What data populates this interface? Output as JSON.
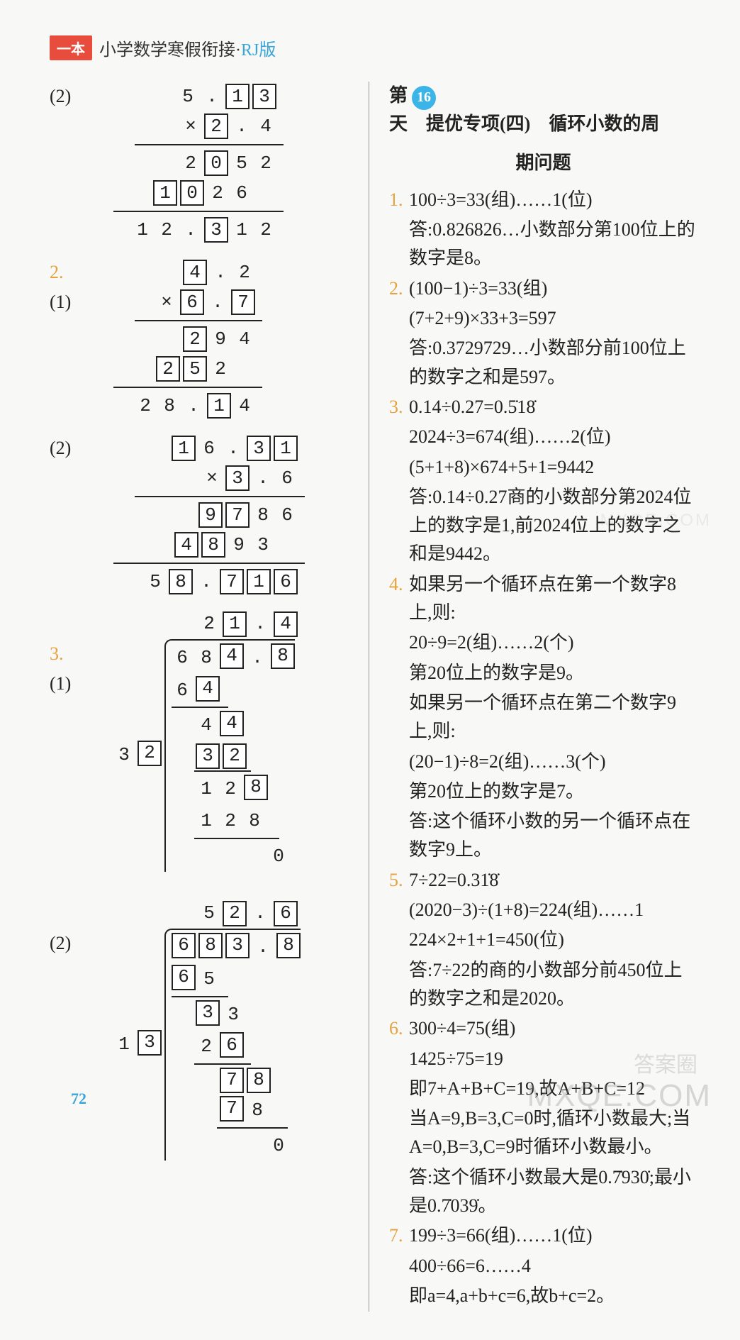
{
  "header": {
    "badge": "一本",
    "title_main": "小学数学寒假衔接·",
    "title_rj": "RJ版"
  },
  "page_number": "72",
  "watermarks": {
    "w1": "MXQE.COM",
    "w2": "答案圈",
    "w3": "MXQE.COM"
  },
  "left": {
    "p1_2": {
      "label": "(2)",
      "r1": [
        "5",
        ".",
        "1",
        "3"
      ],
      "r1_boxed": [
        false,
        false,
        true,
        true
      ],
      "r2": [
        "×",
        "2",
        ".",
        "4"
      ],
      "r2_boxed": [
        false,
        true,
        false,
        false
      ],
      "hr1_w": 210,
      "r3": [
        "2",
        "0",
        "5",
        "2"
      ],
      "r3_boxed": [
        false,
        true,
        false,
        false
      ],
      "r4": [
        "1",
        "0",
        "2",
        "6",
        " "
      ],
      "r4_boxed": [
        true,
        true,
        false,
        false,
        false
      ],
      "hr2_w": 240,
      "r5": [
        "1",
        "2",
        ".",
        "3",
        "1",
        "2"
      ],
      "r5_boxed": [
        false,
        false,
        false,
        true,
        false,
        false
      ]
    },
    "p2_1": {
      "num": "2.",
      "label": "(1)",
      "r1": [
        "4",
        ".",
        "2"
      ],
      "r1_boxed": [
        true,
        false,
        false
      ],
      "r2": [
        "×",
        "6",
        ".",
        "7"
      ],
      "r2_boxed": [
        false,
        true,
        false,
        true
      ],
      "hr1_w": 180,
      "r3": [
        "2",
        "9",
        "4"
      ],
      "r3_boxed": [
        true,
        false,
        false
      ],
      "r4": [
        "2",
        "5",
        "2",
        " "
      ],
      "r4_boxed": [
        true,
        true,
        false,
        false
      ],
      "hr2_w": 210,
      "r5": [
        "2",
        "8",
        ".",
        "1",
        "4"
      ],
      "r5_boxed": [
        false,
        false,
        false,
        true,
        false
      ]
    },
    "p2_2": {
      "label": "(2)",
      "r1": [
        "1",
        "6",
        ".",
        "3",
        "1"
      ],
      "r1_boxed": [
        true,
        false,
        false,
        true,
        true
      ],
      "r2": [
        "×",
        "3",
        ".",
        "6"
      ],
      "r2_boxed": [
        false,
        true,
        false,
        false
      ],
      "hr1_w": 240,
      "r3": [
        "9",
        "7",
        "8",
        "6"
      ],
      "r3_boxed": [
        true,
        true,
        false,
        false
      ],
      "r4": [
        "4",
        "8",
        "9",
        "3",
        " "
      ],
      "r4_boxed": [
        true,
        true,
        false,
        false,
        false
      ],
      "hr2_w": 270,
      "r5": [
        "5",
        "8",
        ".",
        "7",
        "1",
        "6"
      ],
      "r5_boxed": [
        false,
        true,
        false,
        true,
        true,
        true
      ]
    },
    "p3_1": {
      "num": "3.",
      "label": "(1)",
      "quotient": [
        "2",
        "1",
        ".",
        "4"
      ],
      "quotient_boxed": [
        false,
        true,
        false,
        true
      ],
      "divisor": [
        "3",
        "2"
      ],
      "divisor_boxed": [
        false,
        true
      ],
      "dividend": [
        "6",
        "8",
        "4",
        ".",
        "8"
      ],
      "dividend_boxed": [
        false,
        false,
        true,
        false,
        true
      ],
      "steps": [
        {
          "cells": [
            "6",
            "4",
            " ",
            " ",
            " "
          ],
          "boxed": [
            false,
            true,
            false,
            false,
            false
          ],
          "underline_w": 80,
          "underline_off": 0
        },
        {
          "cells": [
            " ",
            "4",
            "4",
            " ",
            " "
          ],
          "boxed": [
            false,
            false,
            true,
            false,
            false
          ]
        },
        {
          "cells": [
            " ",
            "3",
            "2",
            " ",
            " "
          ],
          "boxed": [
            false,
            true,
            true,
            false,
            false
          ],
          "underline_w": 80,
          "underline_off": 32
        },
        {
          "cells": [
            " ",
            "1",
            "2",
            "8",
            " "
          ],
          "boxed": [
            false,
            false,
            false,
            true,
            false
          ]
        },
        {
          "cells": [
            " ",
            "1",
            "2",
            "8",
            " "
          ],
          "boxed": [
            false,
            false,
            false,
            false,
            false
          ],
          "underline_w": 120,
          "underline_off": 32
        },
        {
          "cells": [
            " ",
            " ",
            " ",
            " ",
            "0"
          ],
          "boxed": [
            false,
            false,
            false,
            false,
            false
          ]
        }
      ]
    },
    "p3_2": {
      "label": "(2)",
      "quotient": [
        "5",
        "2",
        ".",
        "6"
      ],
      "quotient_boxed": [
        false,
        true,
        false,
        true
      ],
      "divisor": [
        "1",
        "3"
      ],
      "divisor_boxed": [
        false,
        true
      ],
      "dividend": [
        "6",
        "8",
        "3",
        ".",
        "8"
      ],
      "dividend_boxed": [
        true,
        true,
        true,
        false,
        true
      ],
      "steps": [
        {
          "cells": [
            "6",
            "5",
            " ",
            " ",
            " "
          ],
          "boxed": [
            true,
            false,
            false,
            false,
            false
          ],
          "underline_w": 80,
          "underline_off": 0
        },
        {
          "cells": [
            " ",
            "3",
            "3",
            " ",
            " "
          ],
          "boxed": [
            false,
            true,
            false,
            false,
            false
          ]
        },
        {
          "cells": [
            " ",
            "2",
            "6",
            " ",
            " "
          ],
          "boxed": [
            false,
            false,
            true,
            false,
            false
          ],
          "underline_w": 80,
          "underline_off": 32
        },
        {
          "cells": [
            " ",
            " ",
            "7",
            "8",
            " "
          ],
          "boxed": [
            false,
            false,
            true,
            true,
            false
          ]
        },
        {
          "cells": [
            " ",
            " ",
            "7",
            "8",
            " "
          ],
          "boxed": [
            false,
            false,
            true,
            false,
            false
          ],
          "underline_w": 100,
          "underline_off": 64
        },
        {
          "cells": [
            " ",
            " ",
            " ",
            " ",
            "0"
          ],
          "boxed": [
            false,
            false,
            false,
            false,
            false
          ]
        }
      ]
    }
  },
  "right": {
    "title_prefix": "第",
    "day_num": "16",
    "title_mid": "天　提优专项(四)　循环小数的周",
    "title_suffix": "期问题",
    "items": [
      {
        "num": "1.",
        "lines": [
          "100÷3=33(组)……1(位)",
          "答:0.826826…小数部分第100位上的数字是8。"
        ]
      },
      {
        "num": "2.",
        "lines": [
          "(100−1)÷3=33(组)",
          "(7+2+9)×33+3=597",
          "答:0.3729729…小数部分前100位上的数字之和是597。"
        ]
      },
      {
        "num": "3.",
        "lines": [
          "0.14÷0.27=0.5̇18̇",
          "2024÷3=674(组)……2(位)",
          "(5+1+8)×674+5+1=9442",
          "答:0.14÷0.27商的小数部分第2024位上的数字是1,前2024位上的数字之和是9442。"
        ]
      },
      {
        "num": "4.",
        "lines": [
          "如果另一个循环点在第一个数字8上,则:",
          "20÷9=2(组)……2(个)",
          "第20位上的数字是9。",
          "如果另一个循环点在第二个数字9上,则:",
          "(20−1)÷8=2(组)……3(个)",
          "第20位上的数字是7。",
          "答:这个循环小数的另一个循环点在数字9上。"
        ]
      },
      {
        "num": "5.",
        "lines": [
          "7÷22=0.31̇8̇",
          "(2020−3)÷(1+8)=224(组)……1",
          "224×2+1+1=450(位)",
          "答:7÷22的商的小数部分前450位上的数字之和是2020。"
        ]
      },
      {
        "num": "6.",
        "lines": [
          "300÷4=75(组)",
          "1425÷75=19",
          "即7+A+B+C=19,故A+B+C=12",
          "当A=9,B=3,C=0时,循环小数最大;当A=0,B=3,C=9时循环小数最小。",
          "答:这个循环小数最大是0.7̇930̇;最小是0.7̇039̇。"
        ]
      },
      {
        "num": "7.",
        "lines": [
          "199÷3=66(组)……1(位)",
          "400÷66=6……4",
          "即a=4,a+b+c=6,故b+c=2。"
        ]
      }
    ]
  }
}
